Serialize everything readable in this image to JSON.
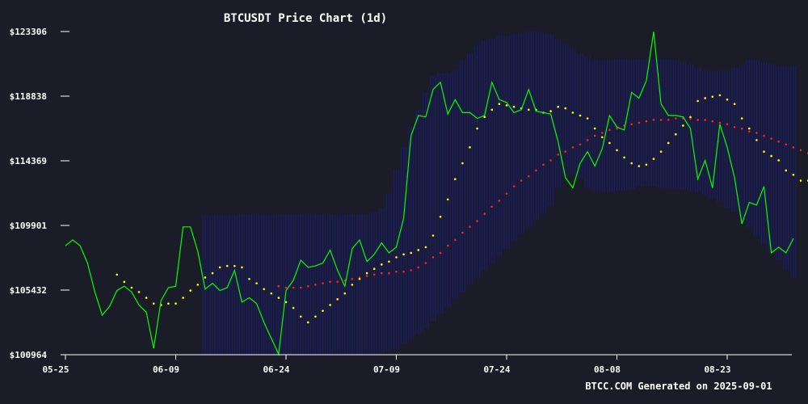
{
  "chart_data": {
    "type": "line",
    "title": "BTCUSDT Price Chart (1d)",
    "footer": "BTCC.COM Generated on 2025-09-01",
    "x_ticks": [
      "05-25",
      "06-09",
      "06-24",
      "07-09",
      "07-24",
      "08-08",
      "08-23"
    ],
    "y_ticks": [
      "$100964",
      "$105432",
      "$109901",
      "$114369",
      "$118838",
      "$123306"
    ],
    "ylim": [
      100964,
      123306
    ],
    "grid": false,
    "colors": {
      "background": "#1a1d27",
      "price": "#00ff00",
      "sar": "#ffff00",
      "ma": "#ff2020",
      "band": "#1a1a8c",
      "axis": "#ffffff"
    },
    "start_date": "2025-05-25",
    "series": [
      {
        "key": "price",
        "start_index": 0,
        "values": [
          108500,
          108900,
          108500,
          107300,
          105300,
          103700,
          104300,
          105400,
          105700,
          105300,
          104400,
          103900,
          101400,
          104700,
          105600,
          105700,
          109800,
          109800,
          108100,
          105500,
          105900,
          105400,
          105600,
          106800,
          104600,
          104900,
          104500,
          103200,
          102100,
          101000,
          105400,
          106100,
          107500,
          107000,
          107100,
          107300,
          108200,
          106800,
          105700,
          108300,
          108900,
          107400,
          107900,
          108700,
          108000,
          108400,
          110400,
          116100,
          117500,
          117400,
          119300,
          119800,
          117600,
          118600,
          117700,
          117700,
          117300,
          117500,
          119800,
          118600,
          118400,
          117700,
          117900,
          119300,
          117800,
          117700,
          117600,
          115700,
          113200,
          112500,
          114200,
          115000,
          114000,
          115200,
          117500,
          116700,
          116500,
          119100,
          118700,
          119900,
          123300,
          118300,
          117500,
          117500,
          117400,
          116600,
          113100,
          114400,
          112500,
          116900,
          115300,
          113200,
          110000,
          111500,
          111300,
          112600,
          108000,
          108400,
          108000,
          109000
        ]
      },
      {
        "key": "sar",
        "start_index": 7,
        "values": [
          106500,
          106000,
          105600,
          105300,
          104900,
          104500,
          104400,
          104500,
          104500,
          104900,
          105400,
          105800,
          106300,
          106600,
          107000,
          107100,
          107100,
          107000,
          106200,
          105900,
          105500,
          105200,
          104900,
          104600,
          104200,
          103600,
          103200,
          103600,
          104000,
          104400,
          104800,
          105200,
          105800,
          106200,
          106600,
          106900,
          107200,
          107400,
          107700,
          107900,
          108000,
          108200,
          108400,
          109200,
          110500,
          111700,
          113100,
          114200,
          115300,
          116600,
          117400,
          117900,
          118300,
          118200,
          118100,
          118000,
          117900,
          117900,
          117700,
          117800,
          118100,
          118000,
          117700,
          117500,
          117300,
          116600,
          116000,
          115600,
          115100,
          114600,
          114200,
          114000,
          114100,
          114500,
          115000,
          115600,
          116200,
          116800,
          117400,
          118500,
          118700,
          118800,
          118900,
          118600,
          118300,
          117300,
          116600,
          115800,
          115000,
          114700,
          114400,
          113700,
          113400,
          113000,
          113000,
          111900,
          111100,
          110000,
          109900
        ]
      },
      {
        "key": "ma",
        "start_index": 29,
        "values": [
          105700,
          105600,
          105600,
          105600,
          105700,
          105800,
          105900,
          106000,
          106000,
          106100,
          106200,
          106300,
          106400,
          106500,
          106600,
          106600,
          106700,
          106700,
          106800,
          107000,
          107300,
          107700,
          108000,
          108500,
          108900,
          109400,
          109800,
          110200,
          110700,
          111200,
          111600,
          112100,
          112600,
          113000,
          113300,
          113700,
          114100,
          114400,
          114800,
          115000,
          115300,
          115500,
          115800,
          116100,
          116300,
          116500,
          116600,
          116800,
          116900,
          117000,
          117100,
          117200,
          117200,
          117200,
          117300,
          117300,
          117300,
          117200,
          117200,
          117100,
          117000,
          116900,
          116700,
          116600,
          116400,
          116300,
          116100,
          115900,
          115700,
          115500,
          115300,
          115100,
          114900,
          114800
        ]
      },
      {
        "key": "band_upper",
        "start_index": 19,
        "values": [
          110600,
          110600,
          110600,
          110600,
          110600,
          110700,
          110700,
          110700,
          110700,
          110700,
          110700,
          110700,
          110700,
          110700,
          110700,
          110700,
          110700,
          110700,
          110700,
          110700,
          110700,
          110700,
          110700,
          110800,
          111100,
          112100,
          113800,
          115300,
          116700,
          117900,
          119100,
          120200,
          120400,
          120400,
          120700,
          121300,
          121800,
          122300,
          122700,
          122800,
          123000,
          123000,
          123100,
          123200,
          123300,
          123300,
          123200,
          123100,
          122800,
          122500,
          122100,
          121800,
          121600,
          121400,
          121300,
          121400,
          121400,
          121400,
          121400,
          121400,
          121400,
          121400,
          121400,
          121400,
          121300,
          121200,
          121000,
          120800,
          120600,
          120600,
          120600,
          120600,
          120800,
          121000,
          121400,
          121300,
          121200,
          121100,
          120900,
          120900,
          120900
        ]
      },
      {
        "key": "band_lower",
        "start_index": 19,
        "values": [
          100964,
          100964,
          100964,
          100964,
          100964,
          100964,
          100964,
          100964,
          100964,
          100964,
          100964,
          100964,
          100964,
          100964,
          100964,
          100964,
          100964,
          100964,
          100964,
          100964,
          100964,
          100964,
          100964,
          101000,
          101100,
          101200,
          101400,
          101700,
          102000,
          102400,
          102800,
          103300,
          103800,
          104300,
          104800,
          105300,
          105800,
          106300,
          106800,
          107300,
          107800,
          108300,
          108800,
          109300,
          109800,
          110300,
          110700,
          111300,
          112500,
          113300,
          113400,
          113100,
          112500,
          112300,
          112200,
          112200,
          112300,
          112300,
          112400,
          112600,
          112600,
          112600,
          112500,
          112400,
          112400,
          112400,
          112300,
          112200,
          112000,
          111800,
          111500,
          111100,
          110800,
          110300,
          109800,
          109200,
          108600,
          108000,
          107500,
          106900,
          106300,
          105900
        ]
      }
    ]
  }
}
